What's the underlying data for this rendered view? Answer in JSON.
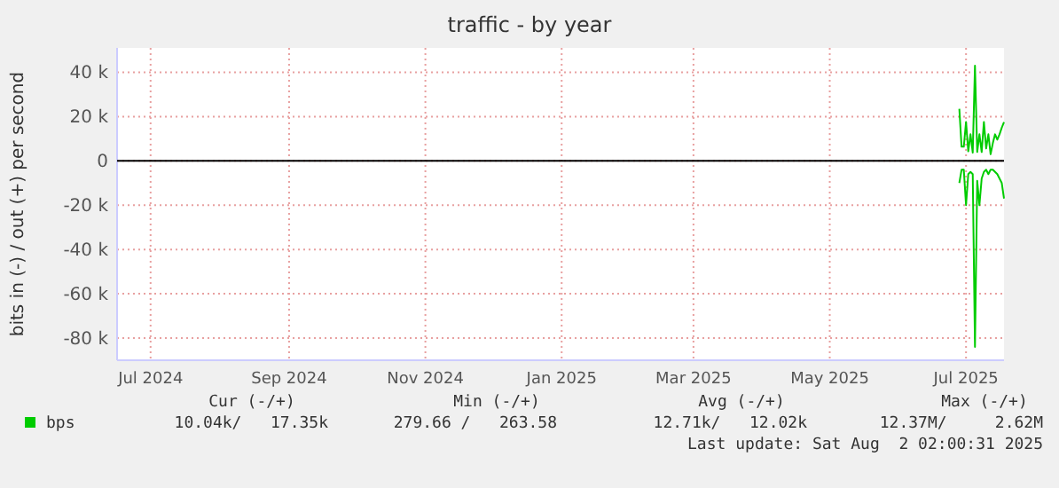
{
  "chart_data": {
    "type": "line",
    "title": "traffic - by year",
    "ylabel": "bits in (-) / out (+) per second",
    "x": [
      "2025-07-13",
      "2025-07-14",
      "2025-07-15",
      "2025-07-16",
      "2025-07-17",
      "2025-07-18",
      "2025-07-19",
      "2025-07-20",
      "2025-07-21",
      "2025-07-22",
      "2025-07-23",
      "2025-07-24",
      "2025-07-25",
      "2025-07-26",
      "2025-07-27",
      "2025-07-28",
      "2025-07-29",
      "2025-07-30",
      "2025-07-31",
      "2025-08-01",
      "2025-08-02"
    ],
    "series": [
      {
        "name": "bps",
        "color": "#00cc00",
        "values": [
          23500,
          6400,
          6400,
          17600,
          4300,
          12000,
          3700,
          43000,
          4000,
          12000,
          4000,
          17600,
          5600,
          12000,
          3000,
          8000,
          12000,
          9600,
          12000,
          15000,
          17500
        ]
      },
      {
        "color": "#00cc00",
        "values": [
          -10000,
          -4000,
          -4000,
          -20000,
          -6000,
          -5000,
          -6000,
          -84000,
          -9000,
          -20000,
          -8000,
          -5000,
          -4000,
          -6000,
          -4000,
          -4000,
          -5000,
          -6000,
          -8000,
          -10000,
          -17000
        ]
      }
    ],
    "xlim": [
      "2024-07-01",
      "2025-08-02"
    ],
    "xticks": [
      {
        "value": "2024-07-16",
        "label": "Jul 2024"
      },
      {
        "value": "2024-09-16",
        "label": "Sep 2024"
      },
      {
        "value": "2024-11-16",
        "label": "Nov 2024"
      },
      {
        "value": "2025-01-16",
        "label": "Jan 2025"
      },
      {
        "value": "2025-03-16",
        "label": "Mar 2025"
      },
      {
        "value": "2025-05-16",
        "label": "May 2025"
      },
      {
        "value": "2025-07-16",
        "label": "Jul 2025"
      }
    ],
    "ylim": [
      -90000,
      51000
    ],
    "yticks": [
      {
        "value": -80000,
        "label": "-80 k"
      },
      {
        "value": -60000,
        "label": "-60 k"
      },
      {
        "value": -40000,
        "label": "-40 k"
      },
      {
        "value": -20000,
        "label": "-20 k"
      },
      {
        "value": 0,
        "label": "0"
      },
      {
        "value": 20000,
        "label": "20 k"
      },
      {
        "value": 40000,
        "label": "40 k"
      }
    ],
    "ref_lines": [
      {
        "axis": "y",
        "value": 0,
        "color": "#000000"
      }
    ],
    "grid": true,
    "legend": "bottom left",
    "annotations": [
      "Cur (-/+)",
      "Min (-/+)",
      "Avg (-/+)",
      "Max (-/+)",
      "10.04k/   17.35k",
      "279.66 /   263.58",
      "12.71k/   12.02k",
      "12.37M/     2.62M",
      "Last update: Sat Aug  2 02:00:31 2025"
    ]
  }
}
